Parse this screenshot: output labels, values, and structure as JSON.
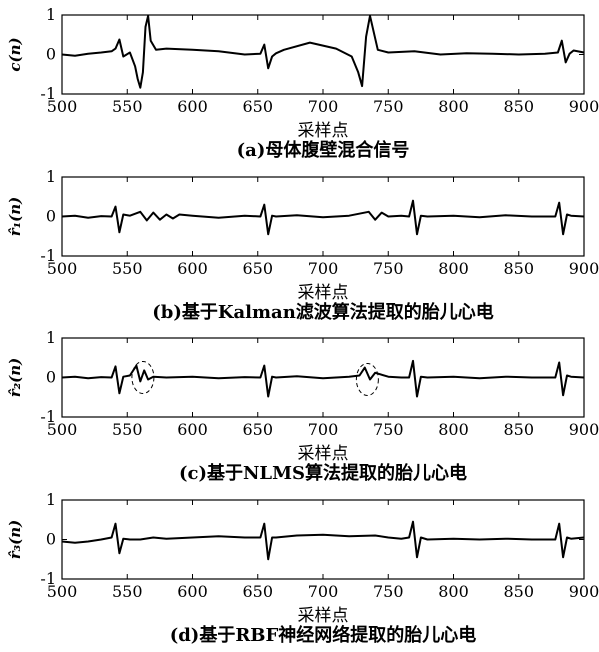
{
  "figure": {
    "panels": [
      {
        "ylabel": "c(n)",
        "caption": "(a)母体腹壁混合信号"
      },
      {
        "ylabel": "r̂₁(n)",
        "caption": "(b)基于Kalman滤波算法提取的胎儿心电"
      },
      {
        "ylabel": "r̂₂(n)",
        "caption": "(c)基于NLMS算法提取的胎儿心电"
      },
      {
        "ylabel": "r̂₃(n)",
        "caption": "(d)基于RBF神经网络提取的胎儿心电"
      }
    ]
  },
  "chart_data": [
    {
      "type": "line",
      "title": "(a)母体腹壁混合信号",
      "xlabel": "采样点",
      "ylabel": "c(n)",
      "xlim": [
        500,
        900
      ],
      "ylim": [
        -1,
        1
      ],
      "xticks": [
        500,
        550,
        600,
        650,
        700,
        750,
        800,
        850,
        900
      ],
      "yticks": [
        -1,
        0,
        1
      ],
      "grid": false,
      "legend": "none",
      "series": [
        {
          "x": [
            500,
            510,
            520,
            530,
            538,
            541,
            544,
            547,
            552,
            556,
            558,
            560,
            562,
            564,
            566,
            568,
            572,
            580,
            600,
            620,
            640,
            652,
            655,
            658,
            661,
            664,
            670,
            690,
            710,
            722,
            727,
            730,
            733,
            736,
            739,
            742,
            750,
            770,
            790,
            810,
            830,
            850,
            870,
            880,
            883,
            886,
            889,
            892,
            900
          ],
          "y": [
            0.0,
            -0.03,
            0.02,
            0.05,
            0.08,
            0.15,
            0.38,
            -0.05,
            0.05,
            -0.3,
            -0.62,
            -0.84,
            -0.45,
            0.7,
            0.98,
            0.35,
            0.12,
            0.15,
            0.12,
            0.08,
            0.0,
            0.02,
            0.25,
            -0.35,
            -0.05,
            0.03,
            0.12,
            0.3,
            0.15,
            -0.05,
            -0.45,
            -0.8,
            0.45,
            0.98,
            0.55,
            0.12,
            0.05,
            0.08,
            0.0,
            0.03,
            0.02,
            0.0,
            0.02,
            0.05,
            0.35,
            -0.2,
            0.02,
            0.1,
            0.05
          ]
        }
      ]
    },
    {
      "type": "line",
      "title": "(b)基于Kalman滤波算法提取的胎儿心电",
      "xlabel": "采样点",
      "ylabel": "r̂₁(n)",
      "xlim": [
        500,
        900
      ],
      "ylim": [
        -1,
        1
      ],
      "xticks": [
        500,
        550,
        600,
        650,
        700,
        750,
        800,
        850,
        900
      ],
      "yticks": [
        -1,
        0,
        1
      ],
      "grid": false,
      "legend": "none",
      "series": [
        {
          "x": [
            500,
            510,
            520,
            530,
            538,
            541,
            544,
            547,
            552,
            560,
            565,
            570,
            575,
            580,
            585,
            590,
            600,
            620,
            640,
            652,
            655,
            658,
            661,
            664,
            680,
            700,
            720,
            735,
            740,
            745,
            750,
            760,
            766,
            769,
            772,
            775,
            780,
            800,
            820,
            840,
            860,
            878,
            881,
            884,
            887,
            890,
            900
          ],
          "y": [
            0.0,
            0.02,
            -0.03,
            0.01,
            0.0,
            0.25,
            -0.4,
            0.05,
            0.02,
            0.12,
            -0.1,
            0.1,
            -0.08,
            0.05,
            -0.05,
            0.05,
            0.02,
            -0.03,
            0.02,
            0.0,
            0.3,
            -0.45,
            0.02,
            0.0,
            0.03,
            -0.02,
            0.02,
            0.12,
            -0.08,
            0.1,
            0.0,
            0.02,
            0.0,
            0.4,
            -0.45,
            0.02,
            0.0,
            0.02,
            -0.02,
            0.03,
            0.0,
            0.0,
            0.35,
            -0.45,
            0.05,
            0.02,
            0.0
          ]
        }
      ]
    },
    {
      "type": "line",
      "title": "(c)基于NLMS算法提取的胎儿心电",
      "xlabel": "采样点",
      "ylabel": "r̂₂(n)",
      "xlim": [
        500,
        900
      ],
      "ylim": [
        -1,
        1
      ],
      "xticks": [
        500,
        550,
        600,
        650,
        700,
        750,
        800,
        850,
        900
      ],
      "yticks": [
        -1,
        0,
        1
      ],
      "grid": false,
      "legend": "none",
      "series": [
        {
          "x": [
            500,
            510,
            520,
            530,
            538,
            541,
            544,
            547,
            552,
            557,
            560,
            563,
            566,
            570,
            580,
            600,
            620,
            640,
            652,
            655,
            658,
            661,
            664,
            680,
            700,
            720,
            728,
            732,
            736,
            740,
            750,
            760,
            766,
            769,
            772,
            775,
            780,
            800,
            820,
            840,
            860,
            878,
            881,
            884,
            887,
            890,
            900
          ],
          "y": [
            0.0,
            0.02,
            -0.02,
            0.01,
            0.0,
            0.28,
            -0.4,
            0.02,
            0.05,
            0.3,
            -0.1,
            0.18,
            -0.05,
            0.02,
            0.0,
            0.02,
            -0.02,
            0.01,
            0.0,
            0.3,
            -0.48,
            0.02,
            0.0,
            0.03,
            -0.02,
            0.02,
            0.05,
            0.25,
            -0.05,
            0.12,
            0.02,
            0.0,
            0.0,
            0.42,
            -0.48,
            0.02,
            0.0,
            0.02,
            -0.02,
            0.02,
            0.0,
            0.0,
            0.38,
            -0.45,
            0.05,
            0.02,
            0.0
          ]
        }
      ],
      "annotations": [
        {
          "shape": "dashed-ellipse",
          "x": 562,
          "y": 0.0
        },
        {
          "shape": "dashed-ellipse",
          "x": 734,
          "y": -0.05
        }
      ]
    },
    {
      "type": "line",
      "title": "(d)基于RBF神经网络提取的胎儿心电",
      "xlabel": "采样点",
      "ylabel": "r̂₃(n)",
      "xlim": [
        500,
        900
      ],
      "ylim": [
        -1,
        1
      ],
      "xticks": [
        500,
        550,
        600,
        650,
        700,
        750,
        800,
        850,
        900
      ],
      "yticks": [
        -1,
        0,
        1
      ],
      "grid": false,
      "legend": "none",
      "series": [
        {
          "x": [
            500,
            510,
            520,
            530,
            538,
            541,
            544,
            547,
            552,
            560,
            570,
            580,
            600,
            620,
            640,
            652,
            655,
            658,
            661,
            664,
            680,
            700,
            720,
            740,
            750,
            760,
            766,
            769,
            772,
            775,
            780,
            800,
            820,
            840,
            860,
            878,
            881,
            884,
            887,
            890,
            900
          ],
          "y": [
            -0.05,
            -0.08,
            -0.05,
            0.0,
            0.05,
            0.4,
            -0.35,
            0.02,
            0.0,
            0.0,
            0.05,
            0.02,
            0.05,
            0.08,
            0.05,
            0.05,
            0.4,
            -0.5,
            0.05,
            0.05,
            0.1,
            0.12,
            0.08,
            0.1,
            0.05,
            0.02,
            0.05,
            0.45,
            -0.45,
            0.05,
            0.0,
            0.02,
            0.0,
            0.02,
            0.0,
            0.0,
            0.4,
            -0.45,
            0.05,
            0.02,
            0.05
          ]
        }
      ]
    }
  ]
}
